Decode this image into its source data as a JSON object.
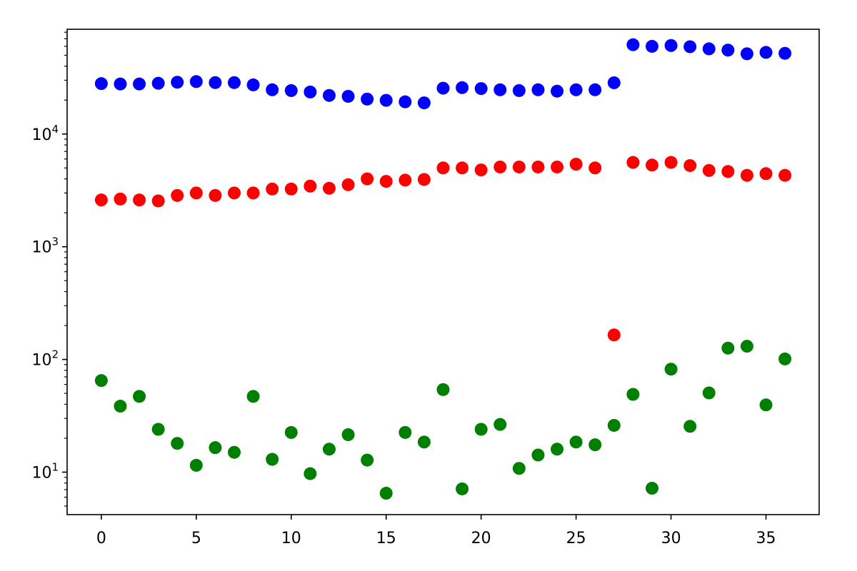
{
  "chart_data": {
    "type": "scatter",
    "title": "",
    "xlabel": "",
    "ylabel": "",
    "xlim": [
      -1.8,
      37.8
    ],
    "ylim": [
      4.2,
      85000
    ],
    "yscale": "log",
    "grid": false,
    "legend": "none",
    "x_ticks": [
      0,
      5,
      10,
      15,
      20,
      25,
      30,
      35
    ],
    "x_tick_labels": [
      "0",
      "5",
      "10",
      "15",
      "20",
      "25",
      "30",
      "35"
    ],
    "y_ticks": [
      {
        "value": 10,
        "base": "10",
        "exp": "1"
      },
      {
        "value": 100,
        "base": "10",
        "exp": "2"
      },
      {
        "value": 1000,
        "base": "10",
        "exp": "3"
      },
      {
        "value": 10000,
        "base": "10",
        "exp": "4"
      }
    ],
    "x": [
      0,
      1,
      2,
      3,
      4,
      5,
      6,
      7,
      8,
      9,
      10,
      11,
      12,
      13,
      14,
      15,
      16,
      17,
      18,
      19,
      20,
      21,
      22,
      23,
      24,
      25,
      26,
      27,
      28,
      29,
      30,
      31,
      32,
      33,
      34,
      35,
      36
    ],
    "series": [
      {
        "color": "#0000ff",
        "values": [
          28000,
          27800,
          27800,
          28200,
          28800,
          29200,
          28600,
          28600,
          27300,
          24700,
          24300,
          23600,
          22000,
          21600,
          20400,
          19900,
          19300,
          18900,
          25500,
          25800,
          25300,
          24700,
          24300,
          24700,
          24000,
          24700,
          24700,
          28500,
          62000,
          60000,
          61000,
          59500,
          57000,
          55500,
          51500,
          53000,
          52000
        ]
      },
      {
        "color": "#ff0000",
        "values": [
          2600,
          2650,
          2600,
          2550,
          2850,
          3000,
          2850,
          3000,
          3000,
          3250,
          3250,
          3450,
          3300,
          3550,
          4000,
          3800,
          3900,
          3950,
          5000,
          5000,
          4800,
          5100,
          5100,
          5100,
          5100,
          5400,
          5000,
          165,
          5600,
          5300,
          5600,
          5250,
          4750,
          4650,
          4300,
          4450,
          4300
        ]
      },
      {
        "color": "#008000",
        "values": [
          65,
          38.5,
          47,
          24,
          18,
          11.5,
          16.5,
          15,
          47,
          13,
          22.5,
          9.7,
          16,
          21.5,
          12.8,
          6.5,
          22.5,
          18.5,
          54,
          7.1,
          24,
          26.5,
          10.8,
          14.2,
          16,
          18.5,
          17.5,
          26,
          49,
          7.2,
          82,
          25.5,
          50.5,
          126,
          131,
          39.5,
          101
        ]
      }
    ]
  }
}
